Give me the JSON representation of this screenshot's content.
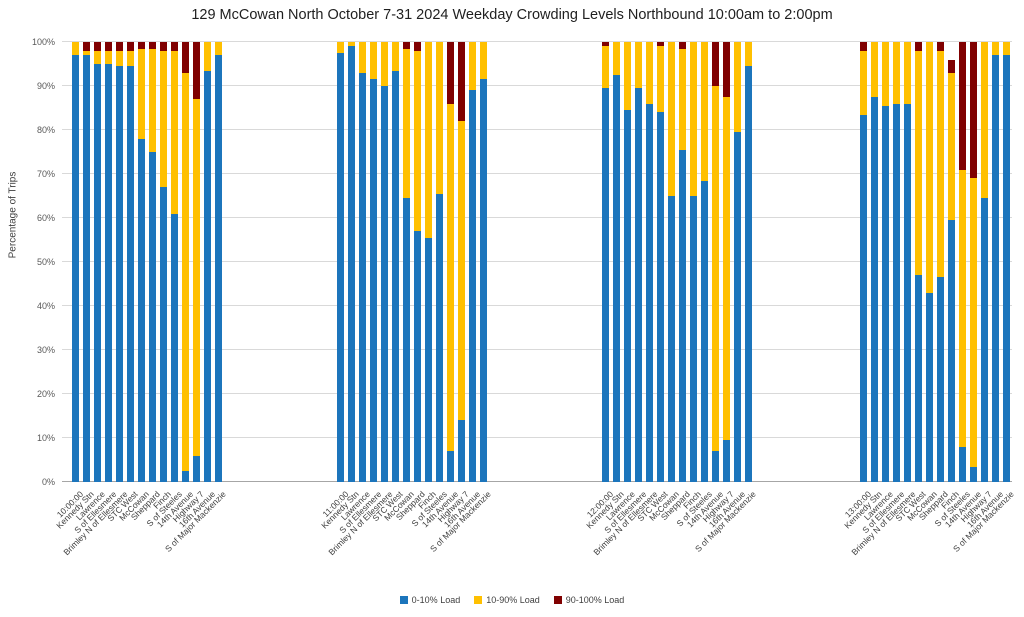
{
  "chart_data": {
    "type": "bar",
    "stacked": true,
    "title": "129 McCowan North October 7-31 2024  Weekday Crowding Levels Northbound 10:00am to 2:00pm",
    "ylabel": "Percentage of Trips",
    "ylim": [
      0,
      100
    ],
    "y_tick_labels": [
      "0%",
      "10%",
      "20%",
      "30%",
      "40%",
      "50%",
      "60%",
      "70%",
      "80%",
      "90%",
      "100%"
    ],
    "grid": true,
    "legend_position": "bottom-center",
    "colors": {
      "load_0_10": "#1C75BC",
      "load_10_90": "#FFC000",
      "load_90_100": "#800000"
    },
    "legend": [
      {
        "label": "0-10% Load",
        "color": "#1C75BC"
      },
      {
        "label": "10-90% Load",
        "color": "#FFC000"
      },
      {
        "label": "90-100% Load",
        "color": "#800000"
      }
    ],
    "groups": [
      {
        "time": "10:00:00",
        "categories": [
          "10:00:00",
          "Kennedy Stn",
          "Lawrence",
          "S of Ellesmere",
          "Brimley N of Ellesmere",
          "STC West",
          "McCowan",
          "Sheppard",
          "Finch",
          "S of Steeles",
          "14th Avenue",
          "Highway 7",
          "16th Avenue",
          "S of Major Mackenzie"
        ],
        "series": [
          {
            "name": "0-10% Load",
            "values": [
              97,
              97,
              95,
              95,
              94.5,
              94.5,
              78,
              75,
              67,
              61,
              2.5,
              6,
              93.5,
              97
            ]
          },
          {
            "name": "10-90% Load",
            "values": [
              3,
              1,
              3,
              3,
              3.5,
              3.5,
              20.5,
              23.5,
              31,
              37,
              90.5,
              81,
              6.5,
              3
            ]
          },
          {
            "name": "90-100% Load",
            "values": [
              0,
              2,
              2,
              2,
              2,
              2,
              1.5,
              1.5,
              2,
              2,
              7,
              13,
              0,
              0
            ]
          }
        ]
      },
      {
        "time": "11:00:00",
        "categories": [
          "11:00:00",
          "Kennedy Stn",
          "Lawrence",
          "S of Ellesmere",
          "Brimley N of Ellesmere",
          "STC West",
          "McCowan",
          "Sheppard",
          "Finch",
          "S of Steeles",
          "14th Avenue",
          "Highway 7",
          "16th Avenue",
          "S of Major Mackenzie"
        ],
        "series": [
          {
            "name": "0-10% Load",
            "values": [
              97.5,
              99,
              93,
              91.5,
              90,
              93.5,
              64.5,
              57,
              55.5,
              65.5,
              7,
              14,
              89,
              91.5
            ]
          },
          {
            "name": "10-90% Load",
            "values": [
              2.5,
              1,
              7,
              8.5,
              10,
              6.5,
              34,
              41,
              44.5,
              34.5,
              79,
              68,
              11,
              8.5
            ]
          },
          {
            "name": "90-100% Load",
            "values": [
              0,
              0,
              0,
              0,
              0,
              0,
              1.5,
              2,
              0,
              0,
              14,
              18,
              0,
              0
            ]
          }
        ]
      },
      {
        "time": "12:00:00",
        "categories": [
          "12:00:00",
          "Kennedy Stn",
          "Lawrence",
          "S of Ellesmere",
          "Brimley N of Ellesmere",
          "STC West",
          "McCowan",
          "Sheppard",
          "Finch",
          "S of Steeles",
          "14th Avenue",
          "Highway 7",
          "16th Avenue",
          "S of Major Mackenzie"
        ],
        "series": [
          {
            "name": "0-10% Load",
            "values": [
              89.5,
              92.5,
              84.5,
              89.5,
              86,
              84,
              65,
              75.5,
              65,
              68.5,
              7,
              9.5,
              79.5,
              94.5
            ]
          },
          {
            "name": "10-90% Load",
            "values": [
              9.5,
              7.5,
              15.5,
              10.5,
              14,
              15,
              35,
              23,
              35,
              31.5,
              83,
              78,
              20.5,
              5.5
            ]
          },
          {
            "name": "90-100% Load",
            "values": [
              1,
              0,
              0,
              0,
              0,
              1,
              0,
              1.5,
              0,
              0,
              10,
              12.5,
              0,
              0
            ]
          }
        ]
      },
      {
        "time": "13:00:00",
        "categories": [
          "13:00:00",
          "Kennedy Stn",
          "Lawrence",
          "S of Ellesmere",
          "Brimley N of Ellesmere",
          "STC West",
          "McCowan",
          "Sheppard",
          "Finch",
          "S of Steeles",
          "14th Avenue",
          "Highway 7",
          "16th Avenue",
          "S of Major Mackenzie"
        ],
        "series": [
          {
            "name": "0-10% Load",
            "values": [
              83.5,
              87.5,
              85.5,
              86,
              86,
              47,
              43,
              46.5,
              59.5,
              8,
              3.5,
              64.5,
              97,
              97
            ]
          },
          {
            "name": "10-90% Load",
            "values": [
              14.5,
              12.5,
              14.5,
              14,
              14,
              51,
              57,
              51.5,
              33.5,
              63,
              65.5,
              35.5,
              3,
              3
            ]
          },
          {
            "name": "90-100% Load",
            "values": [
              2,
              0,
              0,
              0,
              0,
              2,
              0,
              2,
              3,
              29,
              31,
              0,
              0,
              0
            ]
          }
        ]
      }
    ]
  }
}
